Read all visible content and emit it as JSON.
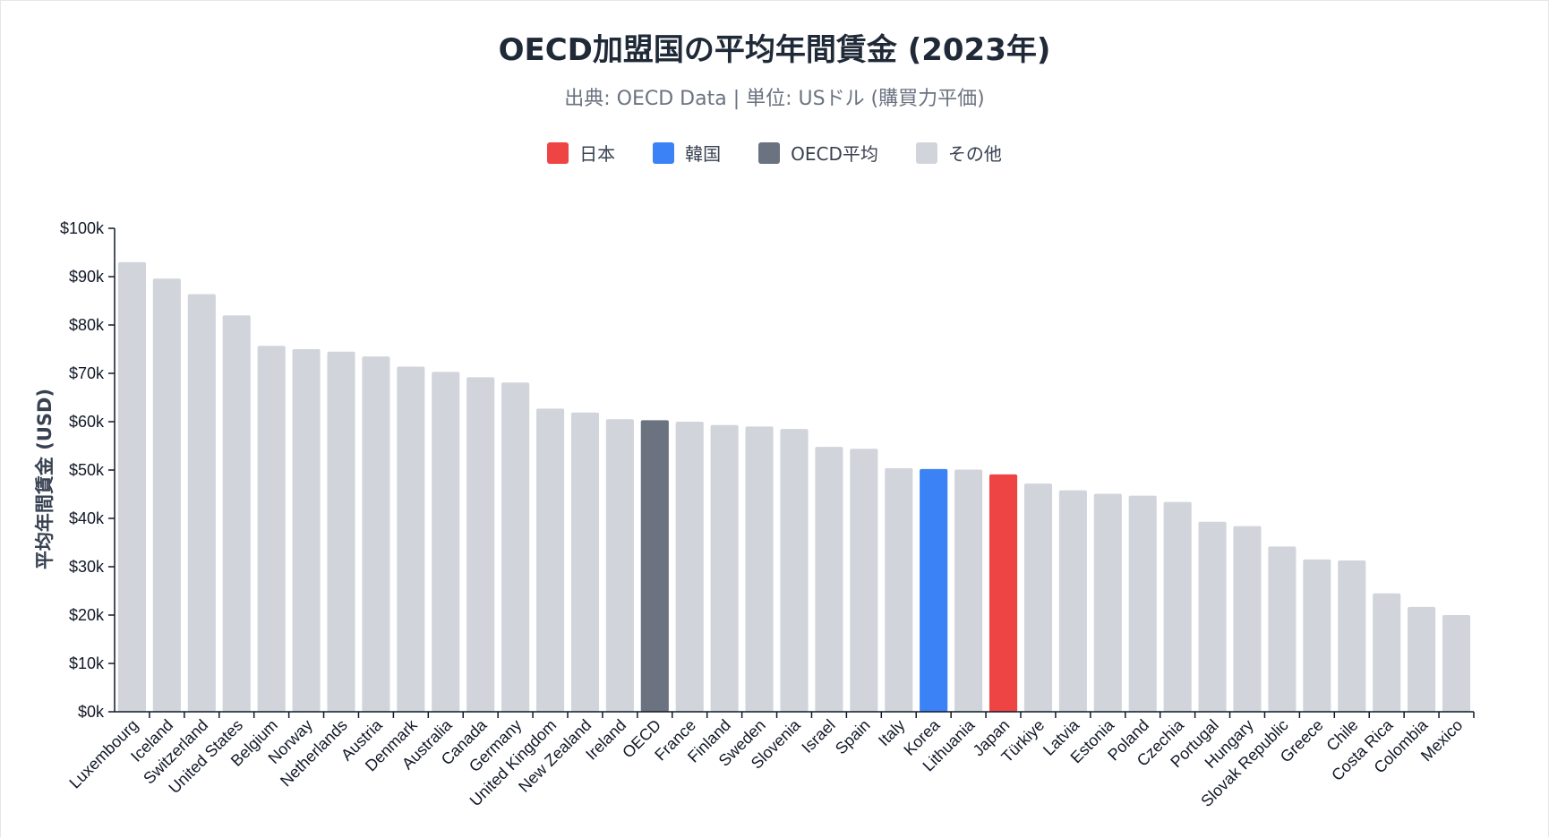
{
  "title": "OECD加盟国の平均年間賃金 (2023年)",
  "subtitle": "出典: OECD Data | 単位: USドル (購買力平価)",
  "legend": [
    {
      "label": "日本",
      "color": "#ef4444"
    },
    {
      "label": "韓国",
      "color": "#3b82f6"
    },
    {
      "label": "OECD平均",
      "color": "#6b7280"
    },
    {
      "label": "その他",
      "color": "#d1d5db"
    }
  ],
  "chart_data": {
    "type": "bar",
    "title": "OECD加盟国の平均年間賃金 (2023年)",
    "subtitle": "出典: OECD Data | 単位: USドル (購買力平価)",
    "ylabel": "平均年間賃金 (USD)",
    "ylim": [
      0,
      100000
    ],
    "yticks": [
      0,
      10000,
      20000,
      30000,
      40000,
      50000,
      60000,
      70000,
      80000,
      90000,
      100000
    ],
    "ytick_labels": [
      "$0k",
      "$10k",
      "$20k",
      "$30k",
      "$40k",
      "$50k",
      "$60k",
      "$70k",
      "$80k",
      "$90k",
      "$100k"
    ],
    "grid": false,
    "legend_position": "top-center",
    "categories": [
      "Luxembourg",
      "Iceland",
      "Switzerland",
      "United States",
      "Belgium",
      "Norway",
      "Netherlands",
      "Austria",
      "Denmark",
      "Australia",
      "Canada",
      "Germany",
      "United Kingdom",
      "New Zealand",
      "Ireland",
      "OECD",
      "France",
      "Finland",
      "Sweden",
      "Slovenia",
      "Israel",
      "Spain",
      "Italy",
      "Korea",
      "Lithuania",
      "Japan",
      "Türkiye",
      "Latvia",
      "Estonia",
      "Poland",
      "Czechia",
      "Portugal",
      "Hungary",
      "Slovak Republic",
      "Greece",
      "Chile",
      "Costa Rica",
      "Colombia",
      "Mexico"
    ],
    "values": [
      93000,
      89600,
      86400,
      82000,
      75700,
      75000,
      74500,
      73500,
      71400,
      70300,
      69200,
      68100,
      62700,
      61900,
      60500,
      60300,
      60000,
      59300,
      59000,
      58500,
      54800,
      54400,
      50400,
      50200,
      50100,
      49100,
      47200,
      45800,
      45100,
      44700,
      43400,
      39300,
      38400,
      34200,
      31500,
      31300,
      24500,
      21700,
      20000
    ],
    "highlight": {
      "Japan": "#ef4444",
      "Korea": "#3b82f6",
      "OECD": "#6b7280"
    },
    "default_color": "#d1d5db"
  }
}
